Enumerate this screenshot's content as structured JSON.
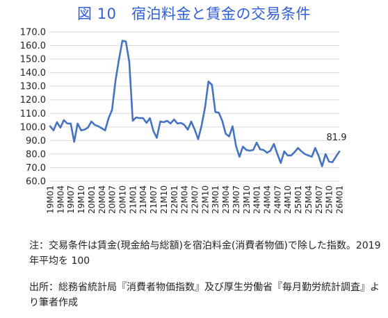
{
  "title": "図 10　宿泊料金と賃金の交易条件",
  "notes": [
    "注：交易条件は賃金(現金給与総額)を宿泊料金(消費者物価)で除した指数。2019 年平均を 100",
    "出所：総務省統計局『消費者物価指数』及び厚生労働省『毎月勤労統計調査』より筆者作成"
  ],
  "colors": {
    "line": "#4472c4",
    "title": "#2e5fd8",
    "grid": "#d9d9d9"
  },
  "chart_data": {
    "type": "line",
    "title": "図 10　宿泊料金と賃金の交易条件",
    "xlabel": "",
    "ylabel": "",
    "ylim": [
      60,
      170
    ],
    "yticks": [
      "60.0",
      "70.0",
      "80.0",
      "90.0",
      "100.0",
      "110.0",
      "120.0",
      "130.0",
      "140.0",
      "150.0",
      "160.0",
      "170.0"
    ],
    "grid": true,
    "legend": "none",
    "xtick_labels": [
      "19M01",
      "19M04",
      "19M07",
      "19M10",
      "20M01",
      "20M04",
      "20M07",
      "20M10",
      "21M01",
      "21M04",
      "21M07",
      "21M10",
      "22M01",
      "22M04",
      "22M07",
      "22M10",
      "23M01",
      "23M04",
      "23M07",
      "23M10",
      "24M01",
      "24M04",
      "24M07",
      "24M10",
      "25M01",
      "25M04",
      "25M07",
      "25M10",
      "26M01"
    ],
    "xtick_every": 3,
    "end_label": "81.9",
    "series": [
      {
        "values": [
          100.5,
          97.5,
          103.5,
          99.5,
          105.0,
          102.5,
          102.5,
          89.0,
          102.5,
          97.5,
          98.0,
          99.5,
          104.0,
          101.5,
          100.5,
          99.0,
          97.5,
          106.5,
          112.5,
          134.0,
          149.5,
          163.5,
          163.0,
          148.0,
          104.5,
          107.0,
          106.5,
          106.5,
          103.0,
          106.5,
          97.0,
          92.0,
          104.0,
          103.5,
          104.5,
          102.5,
          105.5,
          102.5,
          103.0,
          101.5,
          98.0,
          104.0,
          98.0,
          91.0,
          101.0,
          114.5,
          133.5,
          131.0,
          111.0,
          110.5,
          104.5,
          95.0,
          93.0,
          100.5,
          86.0,
          78.0,
          85.5,
          83.0,
          82.5,
          83.0,
          88.5,
          83.5,
          83.0,
          81.0,
          82.5,
          87.5,
          80.0,
          73.5,
          82.0,
          79.0,
          79.0,
          81.5,
          84.5,
          82.0,
          80.0,
          79.0,
          78.0,
          84.5,
          78.5,
          71.0,
          80.0,
          74.5,
          74.0,
          78.0,
          81.9
        ]
      }
    ]
  }
}
